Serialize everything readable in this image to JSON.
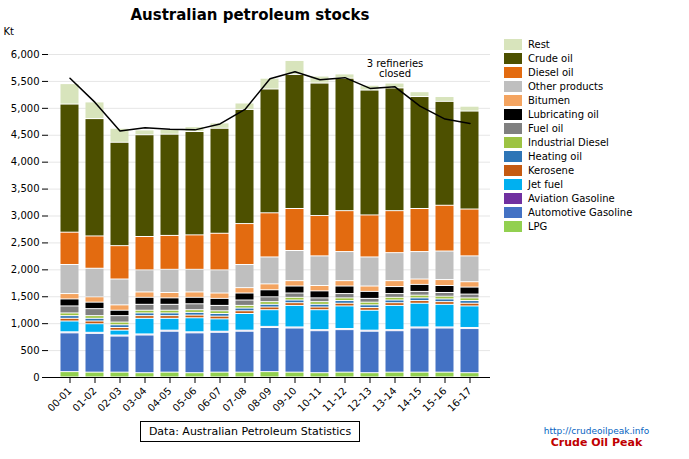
{
  "chart_data": {
    "type": "bar",
    "stacked": true,
    "title": "Australian petroleum stocks",
    "ylabel": "Kt",
    "categories": [
      "00-01",
      "01-02",
      "02-03",
      "03-04",
      "04-05",
      "05-06",
      "06-07",
      "07-08",
      "08-09",
      "09-10",
      "10-11",
      "11-12",
      "12-13",
      "13-14",
      "14-15",
      "15-16",
      "16-17"
    ],
    "series": [
      {
        "name": "LPG",
        "color": "#92d050",
        "values": [
          100,
          90,
          90,
          80,
          90,
          80,
          90,
          90,
          100,
          90,
          80,
          90,
          80,
          90,
          90,
          90,
          80
        ]
      },
      {
        "name": "Automotive Gasoline",
        "color": "#4472c4",
        "values": [
          720,
          720,
          670,
          700,
          760,
          740,
          740,
          760,
          820,
          820,
          780,
          790,
          770,
          770,
          820,
          820,
          820
        ]
      },
      {
        "name": "Aviation Gasoline",
        "color": "#7030a0",
        "values": [
          20,
          20,
          20,
          20,
          20,
          20,
          20,
          20,
          20,
          20,
          20,
          20,
          20,
          20,
          20,
          20,
          20
        ]
      },
      {
        "name": "Jet fuel",
        "color": "#00b0f0",
        "values": [
          200,
          160,
          90,
          290,
          220,
          260,
          230,
          310,
          310,
          400,
          370,
          420,
          370,
          450,
          440,
          420,
          400
        ]
      },
      {
        "name": "Kerosene",
        "color": "#c55a11",
        "values": [
          50,
          50,
          50,
          50,
          50,
          50,
          50,
          50,
          50,
          50,
          50,
          50,
          50,
          50,
          50,
          50,
          50
        ]
      },
      {
        "name": "Heating oil",
        "color": "#2e75b6",
        "values": [
          50,
          50,
          50,
          50,
          50,
          50,
          50,
          50,
          50,
          50,
          50,
          50,
          50,
          50,
          50,
          50,
          50
        ]
      },
      {
        "name": "Industrial Diesel",
        "color": "#9dc343",
        "values": [
          50,
          50,
          50,
          50,
          50,
          50,
          50,
          50,
          50,
          50,
          50,
          50,
          50,
          50,
          50,
          50,
          50
        ]
      },
      {
        "name": "Fuel oil",
        "color": "#808080",
        "values": [
          130,
          130,
          120,
          110,
          110,
          110,
          100,
          100,
          90,
          80,
          70,
          80,
          70,
          70,
          70,
          70,
          70
        ]
      },
      {
        "name": "Lubricating oil",
        "color": "#000000",
        "values": [
          130,
          120,
          100,
          130,
          120,
          120,
          130,
          130,
          130,
          130,
          130,
          140,
          130,
          130,
          130,
          130,
          130
        ]
      },
      {
        "name": "Bitumen",
        "color": "#f4a460",
        "values": [
          100,
          100,
          100,
          100,
          100,
          100,
          100,
          100,
          110,
          100,
          100,
          100,
          100,
          110,
          100,
          110,
          100
        ]
      },
      {
        "name": "Other products",
        "color": "#bfbfbf",
        "values": [
          540,
          530,
          480,
          410,
          430,
          420,
          430,
          430,
          500,
          560,
          550,
          540,
          540,
          520,
          510,
          530,
          480
        ]
      },
      {
        "name": "Diesel oil",
        "color": "#e36b10",
        "values": [
          600,
          600,
          620,
          620,
          630,
          640,
          680,
          760,
          820,
          780,
          750,
          760,
          780,
          780,
          800,
          850,
          870
        ]
      },
      {
        "name": "Crude oil",
        "color": "#4d5000",
        "values": [
          2380,
          2180,
          1920,
          1890,
          1880,
          1920,
          1950,
          2120,
          2300,
          2490,
          2460,
          2460,
          2320,
          2280,
          2080,
          1930,
          1820
        ]
      },
      {
        "name": "Rest",
        "color": "#d8e4bc",
        "values": [
          380,
          310,
          260,
          90,
          90,
          90,
          100,
          120,
          200,
          260,
          130,
          80,
          90,
          90,
          90,
          90,
          90
        ]
      },
      {
        "type": "line",
        "color": "#000000",
        "values": [
          5560,
          5110,
          4580,
          4640,
          4610,
          4600,
          4710,
          4980,
          5550,
          5680,
          5530,
          5570,
          5370,
          5400,
          5040,
          4800,
          4720
        ]
      }
    ],
    "annotations": [
      {
        "text": "3 refineries\nclosed",
        "x": "13-14",
        "y": 5550
      }
    ],
    "source": "Data: Australian Petroleum Statistics",
    "credits": [
      {
        "text": "http://crudeoilpeak.info",
        "color": "#0563c1"
      },
      {
        "text": "Crude Oil Peak",
        "color": "#c00000"
      }
    ],
    "ylim": [
      0,
      6000
    ],
    "yticks": [
      0,
      500,
      {
        "value": 1000,
        "label": "1,000"
      },
      {
        "value": 1500,
        "label": "1,500"
      },
      {
        "value": 2000,
        "label": "2,000"
      },
      {
        "value": 2500,
        "label": "2,500"
      },
      {
        "value": 3000,
        "label": "3,000"
      },
      {
        "value": 3500,
        "label": "3,500"
      },
      {
        "value": 4000,
        "label": "4,000"
      },
      {
        "value": 4500,
        "label": "4,500"
      },
      {
        "value": 5000,
        "label": "5,000"
      },
      {
        "value": 5500,
        "label": "5,500"
      },
      {
        "value": 6000,
        "label": "6,000"
      }
    ],
    "grid": true,
    "legend": "right"
  }
}
